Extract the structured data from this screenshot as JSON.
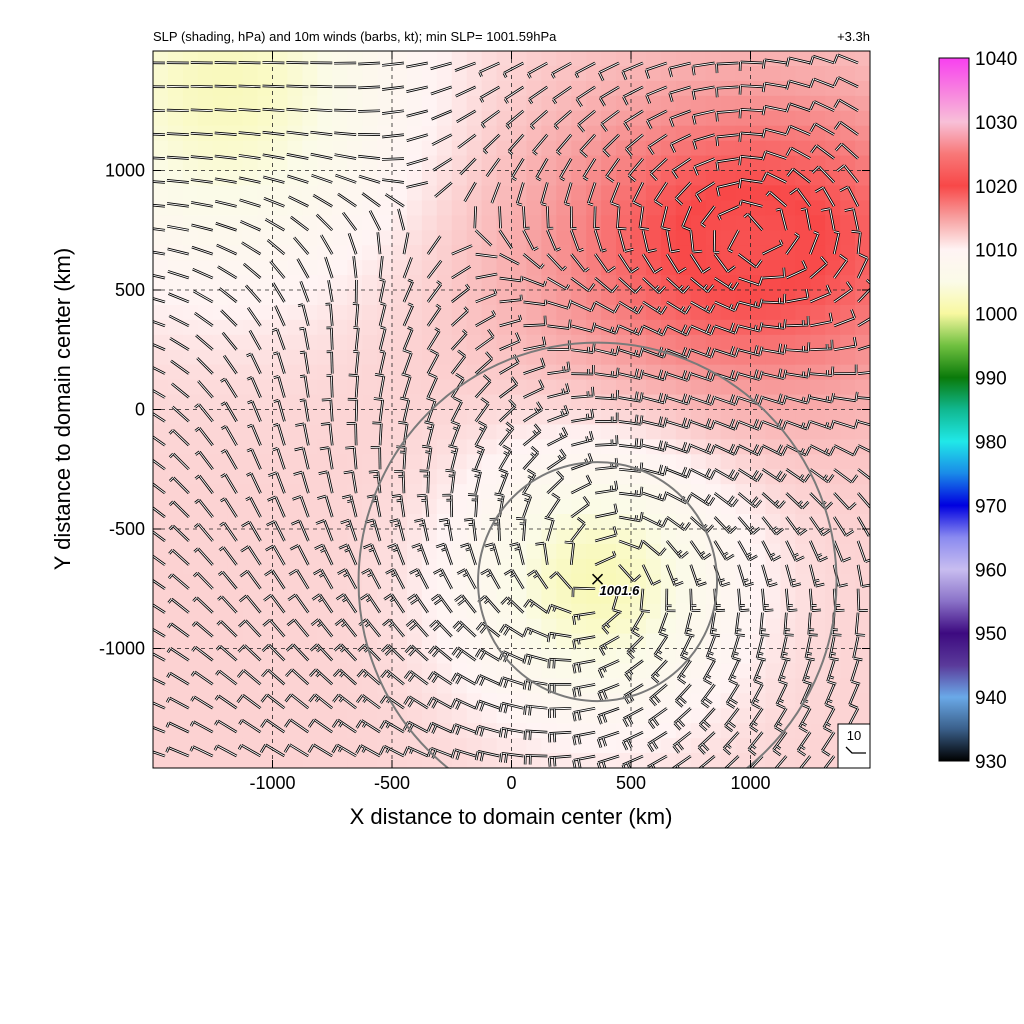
{
  "chart_data": {
    "type": "heatmap",
    "title": "SLP (shading, hPa) and 10m winds (barbs, kt); min SLP= 1001.59hPa",
    "time_label": "+3.3h",
    "xlabel": "X distance to domain center (km)",
    "ylabel": "Y distance to domain center (km)",
    "xlim": [
      -1500,
      1500
    ],
    "ylim": [
      -1500,
      1500
    ],
    "x_ticks": [
      -1000,
      -500,
      0,
      500,
      1000
    ],
    "y_ticks": [
      -1000,
      -500,
      0,
      500,
      1000
    ],
    "grid": true,
    "grid_style": "dashed",
    "colorbar": {
      "ticks": [
        930,
        940,
        950,
        960,
        970,
        980,
        990,
        1000,
        1010,
        1020,
        1030,
        1040
      ],
      "range": [
        930,
        1040
      ],
      "stops": [
        {
          "value": 930,
          "color": "#000000"
        },
        {
          "value": 935,
          "color": "#3a5f8a"
        },
        {
          "value": 940,
          "color": "#6aa9e8"
        },
        {
          "value": 945,
          "color": "#5a3a9a"
        },
        {
          "value": 950,
          "color": "#3d0a80"
        },
        {
          "value": 955,
          "color": "#8a72c8"
        },
        {
          "value": 960,
          "color": "#c8bdf0"
        },
        {
          "value": 965,
          "color": "#8a8af0"
        },
        {
          "value": 970,
          "color": "#0000e0"
        },
        {
          "value": 975,
          "color": "#1a8ae8"
        },
        {
          "value": 980,
          "color": "#20e8e8"
        },
        {
          "value": 985,
          "color": "#10b890"
        },
        {
          "value": 990,
          "color": "#0a7a0a"
        },
        {
          "value": 995,
          "color": "#70c040"
        },
        {
          "value": 1000,
          "color": "#f8f8a0"
        },
        {
          "value": 1005,
          "color": "#fbfbe8"
        },
        {
          "value": 1010,
          "color": "#fff4f4"
        },
        {
          "value": 1015,
          "color": "#f7a0a0"
        },
        {
          "value": 1020,
          "color": "#f84848"
        },
        {
          "value": 1025,
          "color": "#f87878"
        },
        {
          "value": 1030,
          "color": "#f8c0d8"
        },
        {
          "value": 1035,
          "color": "#f880e0"
        },
        {
          "value": 1040,
          "color": "#f840f0"
        }
      ]
    },
    "pressure_features": [
      {
        "kind": "low",
        "x": 360,
        "y": -720,
        "value": 1001.6
      },
      {
        "kind": "high",
        "x": 1000,
        "y": 700,
        "value": 1021
      },
      {
        "kind": "low_ridge",
        "x": -1200,
        "y": 1350,
        "value": 1002
      }
    ],
    "min_center": {
      "x": 360,
      "y": -710,
      "label": "1001.6"
    },
    "range_rings": [
      {
        "center": [
          360,
          -720
        ],
        "radius_km": 500
      },
      {
        "center": [
          360,
          -720
        ],
        "radius_km": 1000
      }
    ],
    "wind_reference": {
      "label": "10",
      "units": "kt"
    },
    "wind_barbs_kt": "cyclonic circulation around the low near (360, -720) km; 10–30 kt"
  }
}
